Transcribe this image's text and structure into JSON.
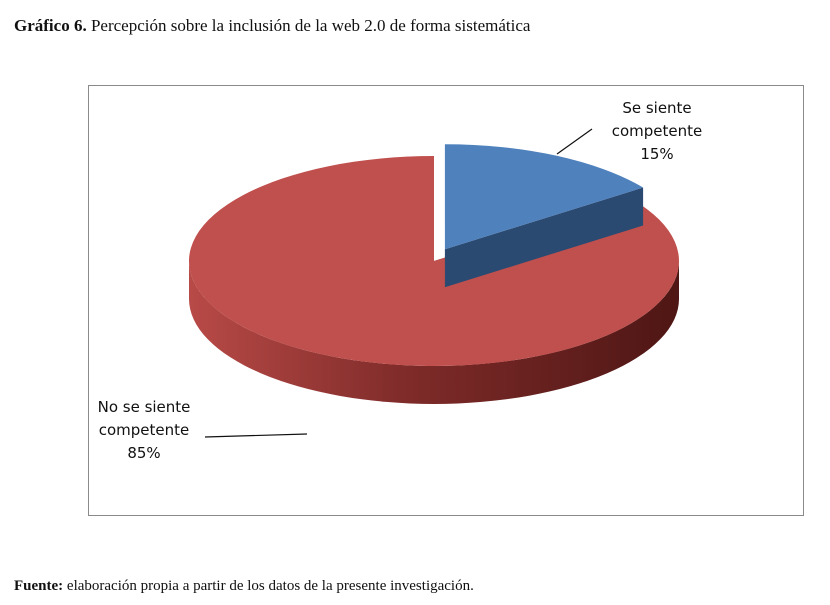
{
  "caption": {
    "number": "Gráfico 6.",
    "text": " Percepción sobre la inclusión de la web 2.0 de forma sistemática"
  },
  "chart_data": {
    "type": "pie",
    "variant": "3d-exploded",
    "slices": [
      {
        "label_line1": "Se siente",
        "label_line2": "competente",
        "percent_label": "15%",
        "value": 15,
        "color": "#4f81bd",
        "side_color": "#2b4a72"
      },
      {
        "label_line1": "No se siente",
        "label_line2": "competente",
        "percent_label": "85%",
        "value": 85,
        "color": "#c0504d",
        "side_color": "#7a2a28"
      }
    ]
  },
  "source": {
    "label": "Fuente:",
    "text": " elaboración propia a partir de los datos de la presente investigación."
  }
}
